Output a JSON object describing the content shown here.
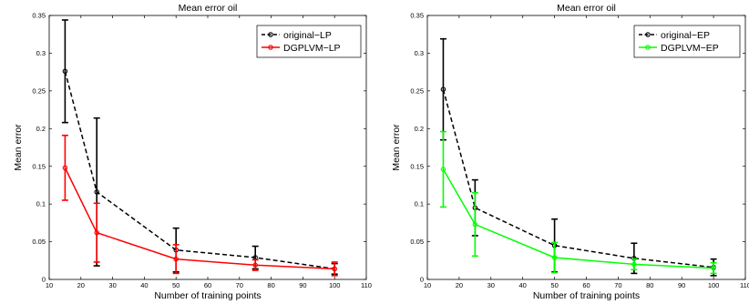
{
  "chart_data": [
    {
      "type": "line",
      "title": "Mean error oil",
      "xlabel": "Number of training points",
      "ylabel": "Mean error",
      "xlim": [
        10,
        110
      ],
      "ylim": [
        0,
        0.35
      ],
      "xticks": [
        "10",
        "20",
        "30",
        "40",
        "50",
        "60",
        "70",
        "80",
        "90",
        "100",
        "110"
      ],
      "yticks": [
        "0",
        "0.05",
        "0.1",
        "0.15",
        "0.2",
        "0.25",
        "0.3",
        "0.35"
      ],
      "legend_position": "top-right",
      "grid": false,
      "series": [
        {
          "name": "original−LP",
          "color": "#000000",
          "style": "dashed",
          "x": [
            15,
            25,
            50,
            75,
            100
          ],
          "y": [
            0.276,
            0.116,
            0.039,
            0.029,
            0.014
          ],
          "error": [
            0.068,
            0.098,
            0.029,
            0.015,
            0.007
          ]
        },
        {
          "name": "DGPLVM−LP",
          "color": "#ff0000",
          "style": "solid",
          "x": [
            15,
            25,
            50,
            75,
            100
          ],
          "y": [
            0.148,
            0.062,
            0.027,
            0.019,
            0.014
          ],
          "error": [
            0.043,
            0.039,
            0.019,
            0.007,
            0.009
          ]
        }
      ]
    },
    {
      "type": "line",
      "title": "Mean error oil",
      "xlabel": "Number of training points",
      "ylabel": "Mean error",
      "xlim": [
        10,
        110
      ],
      "ylim": [
        0,
        0.35
      ],
      "xticks": [
        "10",
        "20",
        "30",
        "40",
        "50",
        "60",
        "70",
        "80",
        "90",
        "100",
        "110"
      ],
      "yticks": [
        "0",
        "0.05",
        "0.1",
        "0.15",
        "0.2",
        "0.25",
        "0.3",
        "0.35"
      ],
      "legend_position": "top-right",
      "grid": false,
      "series": [
        {
          "name": "original−EP",
          "color": "#000000",
          "style": "dashed",
          "x": [
            15,
            25,
            50,
            75,
            100
          ],
          "y": [
            0.252,
            0.095,
            0.045,
            0.028,
            0.016
          ],
          "error": [
            0.067,
            0.037,
            0.035,
            0.02,
            0.011
          ]
        },
        {
          "name": "DGPLVM−EP",
          "color": "#00ff00",
          "style": "solid",
          "x": [
            15,
            25,
            50,
            75,
            100
          ],
          "y": [
            0.146,
            0.073,
            0.029,
            0.02,
            0.015
          ],
          "error": [
            0.05,
            0.042,
            0.02,
            0.007,
            0.007
          ]
        }
      ]
    }
  ]
}
